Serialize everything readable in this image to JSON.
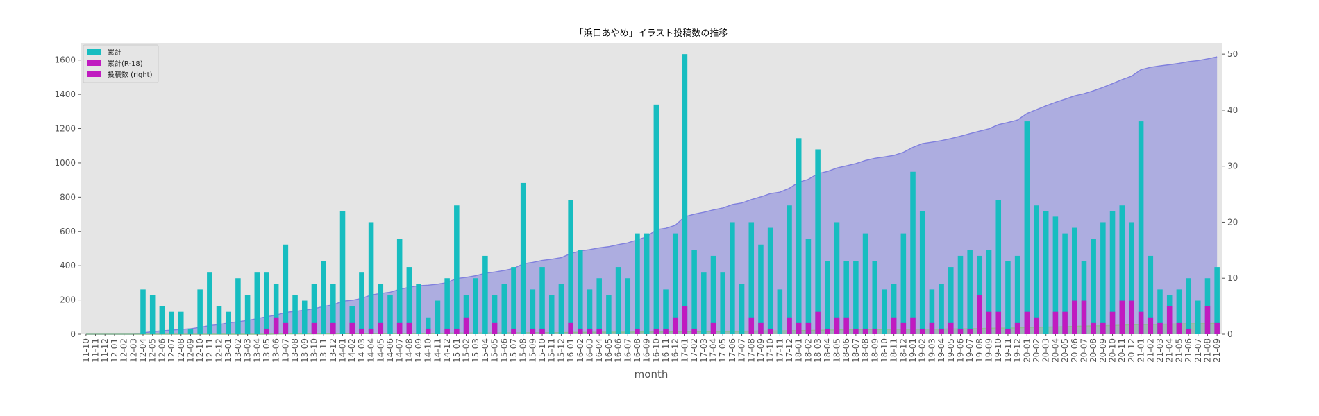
{
  "chart_data": {
    "type": "bar",
    "title": "「浜口あやめ」イラスト投稿数の推移",
    "xlabel": "month",
    "ylabel": "",
    "ylim": [
      0,
      1700
    ],
    "y2lim": [
      0,
      52
    ],
    "yticks": [
      0,
      200,
      400,
      600,
      800,
      1000,
      1200,
      1400,
      1600
    ],
    "y2ticks": [
      0,
      10,
      20,
      30,
      40,
      50
    ],
    "grid": false,
    "legend_position": "top-left",
    "categories": [
      "11-10",
      "11-11",
      "11-12",
      "12-01",
      "12-02",
      "12-03",
      "12-04",
      "12-05",
      "12-06",
      "12-07",
      "12-08",
      "12-09",
      "12-10",
      "12-11",
      "12-12",
      "13-01",
      "13-02",
      "13-03",
      "13-04",
      "13-05",
      "13-06",
      "13-07",
      "13-08",
      "13-09",
      "13-10",
      "13-11",
      "13-12",
      "14-01",
      "14-02",
      "14-03",
      "14-04",
      "14-05",
      "14-06",
      "14-07",
      "14-08",
      "14-09",
      "14-10",
      "14-11",
      "14-12",
      "15-01",
      "15-02",
      "15-03",
      "15-04",
      "15-05",
      "15-06",
      "15-07",
      "15-08",
      "15-09",
      "15-10",
      "15-11",
      "15-12",
      "16-01",
      "16-02",
      "16-03",
      "16-04",
      "16-05",
      "16-06",
      "16-07",
      "16-08",
      "16-09",
      "16-10",
      "16-11",
      "16-12",
      "17-01",
      "17-02",
      "17-03",
      "17-04",
      "17-05",
      "17-06",
      "17-07",
      "17-08",
      "17-09",
      "17-10",
      "17-11",
      "17-12",
      "18-01",
      "18-02",
      "18-03",
      "18-04",
      "18-05",
      "18-06",
      "18-07",
      "18-08",
      "18-09",
      "18-10",
      "18-11",
      "18-12",
      "19-01",
      "19-02",
      "19-03",
      "19-04",
      "19-05",
      "19-06",
      "19-07",
      "19-08",
      "19-09",
      "19-10",
      "19-11",
      "19-12",
      "20-01",
      "20-02",
      "20-03",
      "20-04",
      "20-05",
      "20-06",
      "20-07",
      "20-08",
      "20-09",
      "20-10",
      "20-11",
      "20-12",
      "21-01",
      "21-02",
      "21-03",
      "21-04",
      "21-05",
      "21-06",
      "21-07",
      "21-08",
      "21-09"
    ],
    "series": [
      {
        "name": "累計",
        "kind": "area",
        "axis": "left",
        "color": "#8080dd",
        "values": [
          0,
          0,
          0,
          0,
          0,
          0,
          8,
          15,
          20,
          24,
          28,
          32,
          40,
          51,
          56,
          66,
          73,
          80,
          91,
          102,
          111,
          127,
          134,
          140,
          149,
          162,
          171,
          193,
          198,
          209,
          229,
          238,
          245,
          262,
          274,
          283,
          286,
          292,
          302,
          325,
          332,
          342,
          356,
          363,
          372,
          384,
          411,
          419,
          431,
          438,
          447,
          471,
          486,
          494,
          504,
          511,
          523,
          533,
          551,
          569,
          610,
          618,
          636,
          686,
          701,
          712,
          726,
          737,
          757,
          766,
          786,
          802,
          821,
          829,
          852,
          887,
          904,
          937,
          950,
          970,
          983,
          996,
          1014,
          1027,
          1035,
          1044,
          1062,
          1091,
          1113,
          1121,
          1130,
          1142,
          1156,
          1171,
          1185,
          1199,
          1223,
          1236,
          1250,
          1288,
          1311,
          1333,
          1354,
          1372,
          1391,
          1404,
          1421,
          1441,
          1463,
          1486,
          1506,
          1544,
          1558,
          1566,
          1573,
          1581,
          1591,
          1597,
          1607,
          1619
        ]
      },
      {
        "name": "累計(R-18)",
        "kind": "area",
        "axis": "left",
        "color": "#8fbf8f",
        "values": [
          0,
          0,
          0,
          0,
          0,
          0,
          0,
          0,
          0,
          0,
          0,
          0,
          0,
          0,
          0,
          0,
          0,
          0,
          0,
          0,
          1,
          2,
          2,
          2,
          2,
          2,
          2,
          3,
          3,
          3,
          4,
          4,
          4,
          5,
          5,
          5,
          5,
          5,
          6,
          7,
          7,
          7,
          7,
          7,
          8,
          8,
          8,
          9,
          9,
          9,
          9,
          11,
          11,
          11,
          12,
          12,
          12,
          12,
          13,
          13,
          13,
          13,
          14,
          15,
          15,
          15,
          16,
          16,
          16,
          17,
          18,
          19,
          19,
          19,
          20,
          21,
          22,
          23,
          24,
          25,
          26,
          26,
          27,
          27,
          27,
          28,
          28,
          29,
          29,
          29,
          30,
          31,
          31,
          32,
          33,
          35,
          36,
          36,
          37,
          40,
          41,
          42,
          43,
          44,
          46,
          48,
          49,
          50,
          51,
          53,
          55,
          56,
          57,
          58,
          59,
          60,
          61,
          61,
          62,
          63
        ]
      },
      {
        "name": "累計",
        "kind": "bar",
        "axis": "right",
        "color": "#17bdc0",
        "values": [
          0,
          0,
          0,
          0,
          0,
          0,
          8,
          7,
          5,
          4,
          4,
          1,
          8,
          11,
          5,
          4,
          10,
          7,
          11,
          11,
          9,
          16,
          7,
          6,
          9,
          13,
          9,
          22,
          5,
          11,
          20,
          9,
          7,
          17,
          12,
          9,
          3,
          6,
          10,
          23,
          7,
          10,
          14,
          7,
          9,
          12,
          27,
          8,
          12,
          7,
          9,
          24,
          15,
          8,
          10,
          7,
          12,
          10,
          18,
          18,
          41,
          8,
          18,
          50,
          15,
          11,
          14,
          11,
          20,
          9,
          20,
          16,
          19,
          8,
          23,
          35,
          17,
          33,
          13,
          20,
          13,
          13,
          18,
          13,
          8,
          9,
          18,
          29,
          22,
          8,
          9,
          12,
          14,
          15,
          14,
          15,
          24,
          13,
          14,
          38,
          23,
          22,
          21,
          18,
          19,
          13,
          17,
          20,
          22,
          23,
          20,
          38,
          14,
          8,
          7,
          8,
          10,
          6,
          10,
          12
        ]
      },
      {
        "name": "投稿数 (right)",
        "kind": "bar",
        "axis": "right",
        "color": "#c01bc0",
        "values": [
          0,
          0,
          0,
          0,
          0,
          0,
          0,
          0,
          0,
          0,
          0,
          0,
          0,
          0,
          0,
          0,
          0,
          0,
          0,
          1,
          3,
          2,
          0,
          0,
          2,
          0,
          2,
          0,
          2,
          1,
          1,
          2,
          0,
          2,
          2,
          0,
          1,
          0,
          1,
          1,
          3,
          0,
          0,
          2,
          0,
          1,
          0,
          1,
          1,
          0,
          0,
          2,
          1,
          1,
          1,
          0,
          0,
          0,
          1,
          0,
          1,
          1,
          3,
          5,
          1,
          0,
          2,
          0,
          0,
          0,
          3,
          2,
          1,
          0,
          3,
          2,
          2,
          4,
          1,
          3,
          3,
          1,
          1,
          1,
          0,
          3,
          2,
          3,
          1,
          2,
          1,
          2,
          1,
          1,
          7,
          4,
          4,
          1,
          2,
          4,
          3,
          0,
          4,
          4,
          6,
          6,
          2,
          2,
          4,
          6,
          6,
          4,
          3,
          2,
          5,
          2,
          1,
          0,
          5,
          2
        ]
      }
    ]
  }
}
